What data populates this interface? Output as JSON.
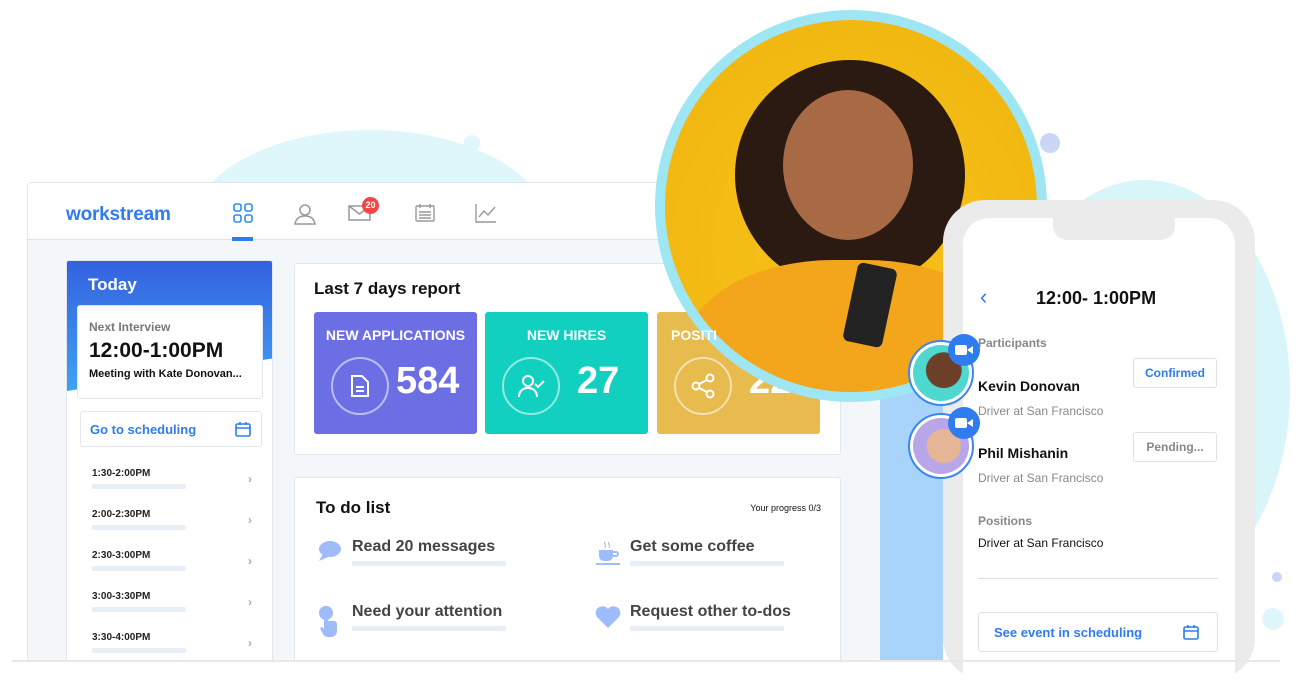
{
  "app": {
    "logo": "workstream",
    "nav": [
      {
        "icon": "dashboard-grid-icon",
        "active": true
      },
      {
        "icon": "user-icon"
      },
      {
        "icon": "mail-icon",
        "badge": "20"
      },
      {
        "icon": "calendar-icon"
      },
      {
        "icon": "chart-line-icon"
      }
    ]
  },
  "today": {
    "title": "Today",
    "next_label": "Next Interview",
    "next_time": "12:00-1:00PM",
    "next_meeting": "Meeting with Kate Donovan...",
    "goto": "Go to scheduling",
    "slots": [
      "1:30-2:00PM",
      "2:00-2:30PM",
      "2:30-3:00PM",
      "3:00-3:30PM",
      "3:30-4:00PM"
    ]
  },
  "report": {
    "title": "Last 7 days report",
    "stats": [
      {
        "name": "NEW APPLICATIONS",
        "value": "584",
        "color": "#6c6fe3",
        "icon": "document-icon"
      },
      {
        "name": "NEW HIRES",
        "value": "27",
        "color": "#11d0c0",
        "icon": "user-check-icon"
      },
      {
        "name": "POSITI",
        "value": "22",
        "color": "#e8bb4e",
        "icon": "share-icon"
      }
    ]
  },
  "todo": {
    "title": "To do list",
    "progress": "Your progress 0/3",
    "items": [
      {
        "label": "Read 20 messages",
        "icon": "chat-bubble-icon"
      },
      {
        "label": "Get some coffee",
        "icon": "coffee-cup-icon"
      },
      {
        "label": "Need your attention",
        "icon": "tap-hand-icon"
      },
      {
        "label": "Request other to-dos",
        "icon": "heart-icon"
      }
    ]
  },
  "phone": {
    "title": "12:00- 1:00PM",
    "participants_label": "Participants",
    "participants": [
      {
        "name": "Kevin Donovan",
        "role": "Driver at San Francisco",
        "status": "Confirmed",
        "status_color": "#2f7bf0"
      },
      {
        "name": "Phil Mishanin",
        "role": "Driver at San Francisco",
        "status": "Pending...",
        "status_color": "#888888"
      }
    ],
    "positions_label": "Positions",
    "position": "Driver at San Francisco",
    "see_event": "See event in scheduling"
  },
  "colors": {
    "accent": "#2f7bf0",
    "photo_bg": "#f4bb14",
    "ring": "#9fe6f4"
  }
}
